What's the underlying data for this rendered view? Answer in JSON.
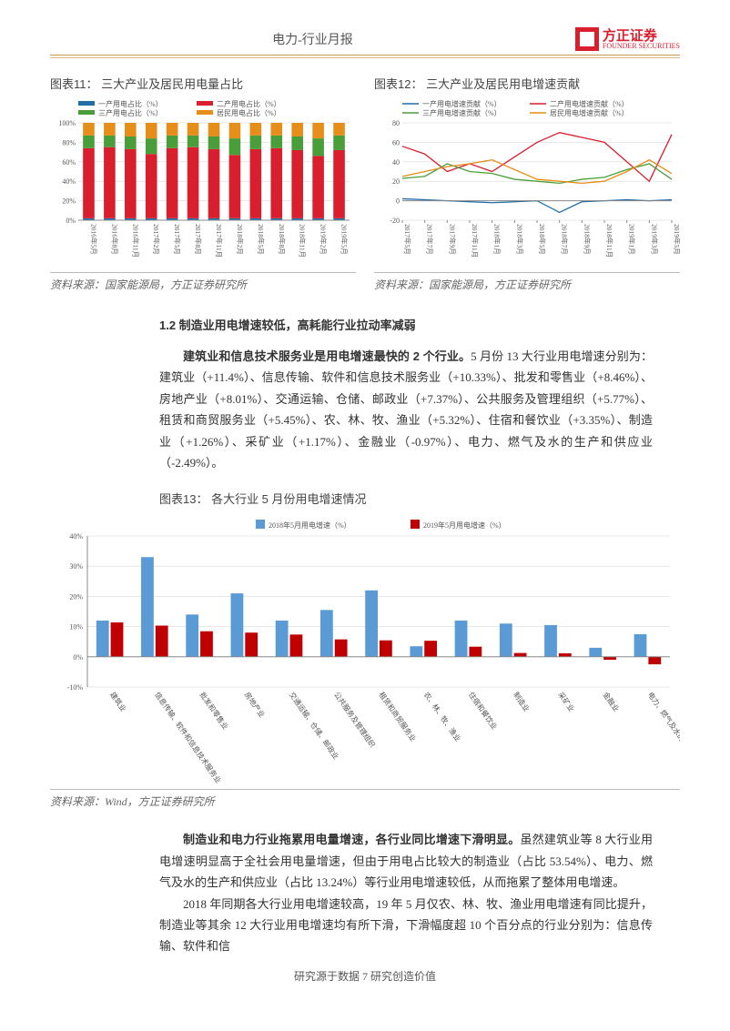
{
  "header": {
    "title": "电力-行业月报",
    "logo_cn": "方正证券",
    "logo_en": "FOUNDER SECURITIES"
  },
  "chart11": {
    "caption": "图表11：    三大产业及居民用电量占比",
    "source": "资料来源：国家能源局，方正证券研究所",
    "type": "stacked-bar",
    "legend": [
      "一产用电占比（%）",
      "二产用电占比（%）",
      "三产用电占比（%）",
      "居民用电占比（%）"
    ],
    "legend_colors": [
      "#1f6ea7",
      "#d91e2e",
      "#4a9e3a",
      "#e58e1a"
    ],
    "xlabels": [
      "2016年5月",
      "2016年8月",
      "2016年11月",
      "2017年2月",
      "2017年5月",
      "2017年8月",
      "2017年11月",
      "2018年2月",
      "2018年5月",
      "2018年8月",
      "2018年11月",
      "2019年2月",
      "2019年5月"
    ],
    "ylim": [
      0,
      100
    ],
    "ytick_step": 20,
    "grid_color": "#d0d0d0",
    "background_color": "#ffffff",
    "series": [
      [
        2,
        2,
        2,
        2,
        2,
        2,
        2,
        2,
        2,
        2,
        2,
        2,
        2
      ],
      [
        72,
        73,
        71,
        66,
        72,
        73,
        71,
        65,
        71,
        72,
        70,
        64,
        70
      ],
      [
        13,
        12,
        13,
        16,
        13,
        12,
        13,
        17,
        14,
        13,
        14,
        18,
        15
      ],
      [
        13,
        13,
        14,
        16,
        13,
        13,
        14,
        16,
        13,
        13,
        14,
        16,
        13
      ]
    ]
  },
  "chart12": {
    "caption": "图表12：    三大产业及居民用电增速贡献",
    "source": "资料来源：国家能源局，方正证券研究所",
    "type": "line",
    "legend": [
      "一产用电增速贡献（%）",
      "二产用电增速贡献（%）",
      "三产用电增速贡献（%）",
      "居民用电增速贡献（%）"
    ],
    "legend_colors": [
      "#1f6ea7",
      "#d91e2e",
      "#4a9e3a",
      "#e58e1a"
    ],
    "xlabels": [
      "2017年5月",
      "2017年7月",
      "2017年9月",
      "2017年11月",
      "2018年1月",
      "2018年3月",
      "2018年5月",
      "2018年7月",
      "2018年9月",
      "2018年11月",
      "2019年1月",
      "2019年3月",
      "2019年5月"
    ],
    "ylim": [
      -20,
      80
    ],
    "ytick_step": 20,
    "grid_color": "#d0d0d0",
    "series": {
      "l1": [
        2,
        1,
        0,
        -1,
        -2,
        -1,
        0,
        -12,
        -1,
        0,
        1,
        0,
        1
      ],
      "l2": [
        56,
        48,
        30,
        38,
        30,
        45,
        60,
        70,
        65,
        60,
        40,
        20,
        68
      ],
      "l3": [
        23,
        25,
        38,
        30,
        28,
        22,
        20,
        18,
        22,
        24,
        32,
        38,
        22
      ],
      "l4": [
        25,
        30,
        35,
        38,
        42,
        32,
        22,
        20,
        18,
        20,
        30,
        42,
        28
      ]
    }
  },
  "section": {
    "heading": "1.2 制造业用电增速较低，高耗能行业拉动率减弱",
    "para1_lead": "建筑业和信息技术服务业是用电增速最快的 2 个行业。",
    "para1_body": "5 月份 13 大行业用电增速分别为：建筑业（+11.4%）、信息传输、软件和信息技术服务业（+10.33%）、批发和零售业（+8.46%）、房地产业（+8.01%）、交通运输、仓储、邮政业（+7.37%）、公共服务及管理组织（+5.77%）、租赁和商贸服务业（+5.45%）、农、林、牧、渔业（+5.32%）、住宿和餐饮业（+3.35%）、制造业（+1.26%）、采矿业（+1.17%）、金融业（-0.97%）、电力、燃气及水的生产和供应业（-2.49%）。"
  },
  "chart13": {
    "caption": "图表13：    各大行业 5 月份用电增速情况",
    "source": "资料来源：Wind，方正证券研究所",
    "type": "grouped-bar",
    "legend": [
      "2018年5月用电增速（%）",
      "2019年5月用电增速（%）"
    ],
    "legend_colors": [
      "#5b9bd5",
      "#c00000"
    ],
    "xlabels": [
      "建筑业",
      "信息传输、软件和信息技术服务业",
      "批发和零售业",
      "房地产业",
      "交通运输、仓储、邮政业",
      "公共服务及管理组织",
      "租赁和商贸服务业",
      "农、林、牧、渔业",
      "住宿和餐饮业",
      "制造业",
      "采矿业",
      "金融业",
      "电力、燃气及水的生产和供应业"
    ],
    "ylim": [
      -10,
      40
    ],
    "ytick_step": 10,
    "grid_color": "#d0d0d0",
    "series2018": [
      12,
      33,
      14,
      21,
      12,
      15.5,
      22,
      3.5,
      12,
      11,
      10.5,
      3,
      7.5
    ],
    "series2019": [
      11.4,
      10.33,
      8.46,
      8.01,
      7.37,
      5.77,
      5.45,
      5.32,
      3.35,
      1.26,
      1.17,
      -0.97,
      -2.49
    ]
  },
  "section2": {
    "para2_lead": "制造业和电力行业拖累用电量增速，各行业同比增速下滑明显。",
    "para2_body": "虽然建筑业等 8 大行业用电增速明显高于全社会用电量增速，但由于用电占比较大的制造业（占比 53.54%）、电力、燃气及水的生产和供应业（占比 13.24%）等行业用电增速较低，从而拖累了整体用电增速。",
    "para3": "2018 年同期各大行业用电增速较高，19 年 5 月仅农、林、牧、渔业用电增速有同比提升，制造业等其余 12 大行业用电增速均有所下滑，下滑幅度超 10 个百分点的行业分别为：信息传输、软件和信"
  },
  "footer": "研究源于数据 7 研究创造价值"
}
